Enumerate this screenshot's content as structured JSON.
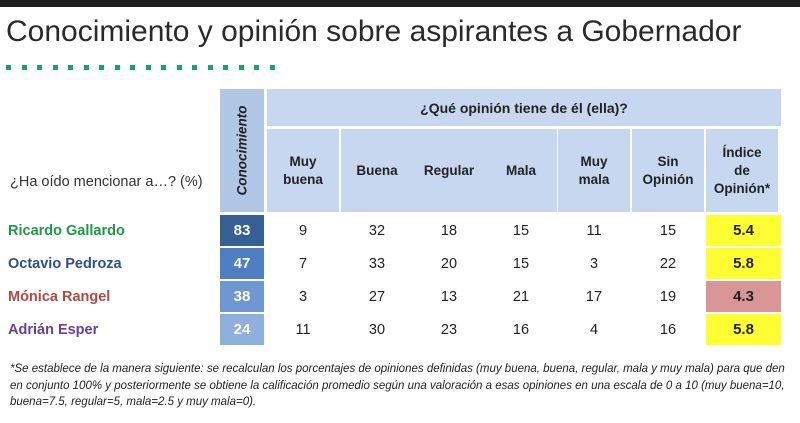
{
  "title": "Conocimiento y opinión sobre aspirantes a Gobernador",
  "question_label": "¿Ha oído mencionar a…? (%)",
  "knowledge_header": "Conocimiento",
  "opinion_header": "¿Qué opinión tiene de él (ella)?",
  "columns": [
    {
      "lines": [
        "Muy",
        "buena"
      ]
    },
    {
      "lines": [
        "Buena"
      ]
    },
    {
      "lines": [
        "Regular"
      ]
    },
    {
      "lines": [
        "Mala"
      ]
    },
    {
      "lines": [
        "Muy",
        "mala"
      ]
    },
    {
      "lines": [
        "Sin",
        "Opinión"
      ]
    },
    {
      "lines": [
        "Índice",
        "de",
        "Opinión*"
      ]
    }
  ],
  "colors": {
    "knowledge_dark": "#365f93",
    "knowledge_mid": "#4e7fc3",
    "knowledge_light": "#6f97d2",
    "knowledge_lightest": "#8fb0de",
    "index_yellow": "#fefe33",
    "index_pink": "#d99696"
  },
  "chart_data": {
    "type": "table",
    "columns": [
      "Conocimiento",
      "Muy buena",
      "Buena",
      "Regular",
      "Mala",
      "Muy mala",
      "Sin Opinión",
      "Índice de Opinión*"
    ],
    "rows": [
      {
        "name": "Ricardo Gallardo",
        "name_color": "#1e9a47",
        "knowledge": "83",
        "knowledge_color": "#365f93",
        "values": [
          "9",
          "32",
          "18",
          "15",
          "11",
          "15"
        ],
        "index": "5.4",
        "index_color": "#fefe33"
      },
      {
        "name": "Octavio Pedroza",
        "name_color": "#2e4f8a",
        "knowledge": "47",
        "knowledge_color": "#4e7fc3",
        "values": [
          "7",
          "33",
          "20",
          "15",
          "3",
          "22"
        ],
        "index": "5.8",
        "index_color": "#fefe33"
      },
      {
        "name": "Mónica Rangel",
        "name_color": "#b04a42",
        "knowledge": "38",
        "knowledge_color": "#6f97d2",
        "values": [
          "3",
          "27",
          "13",
          "21",
          "17",
          "19"
        ],
        "index": "4.3",
        "index_color": "#d99696"
      },
      {
        "name": "Adrián Esper",
        "name_color": "#6a3f96",
        "knowledge": "24",
        "knowledge_color": "#8fb0de",
        "values": [
          "11",
          "30",
          "23",
          "16",
          "4",
          "16"
        ],
        "index": "5.8",
        "index_color": "#fefe33"
      }
    ]
  },
  "footnote": "*Se establece de la manera siguiente: se recalculan los porcentajes de opiniones definidas (muy buena, buena, regular, mala y muy mala) para que den en conjunto 100% y posteriormente se obtiene la calificación promedio según una valoración a esas opiniones en una escala de 0 a 10 (muy buena=10, buena=7.5, regular=5, mala=2.5 y muy mala=0)."
}
